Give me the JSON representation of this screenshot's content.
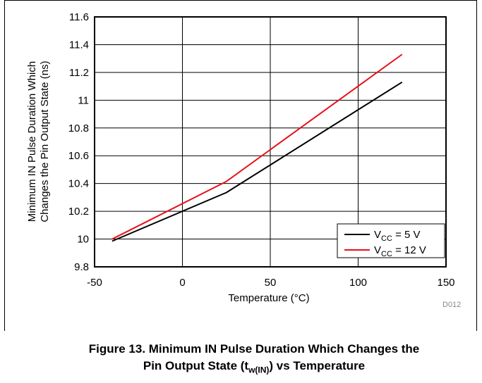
{
  "chart_data": {
    "type": "line",
    "x_label_prefix": "Temperature (",
    "x_label_unit": "°C",
    "x_label_suffix": ")",
    "y_label_line1": "Minimum IN Pulse Duration Which",
    "y_label_line2": "Changes the Pin Output State (ns)",
    "xlim": [
      -50,
      150
    ],
    "ylim": [
      9.8,
      11.6
    ],
    "x_ticks": [
      -50,
      0,
      50,
      100,
      150
    ],
    "x_tick_labels": [
      "-50",
      "0",
      "50",
      "100",
      "150"
    ],
    "y_ticks": [
      9.8,
      10,
      10.2,
      10.4,
      10.6,
      10.8,
      11,
      11.2,
      11.4,
      11.6
    ],
    "y_tick_labels": [
      "9.8",
      "10",
      "10.2",
      "10.4",
      "10.6",
      "10.8",
      "11",
      "11.2",
      "11.4",
      "11.6"
    ],
    "grid": true,
    "legend_position": "bottom-right",
    "series": [
      {
        "name_main": "V",
        "name_sub": "CC",
        "name_rest": " = 5 V",
        "color": "#000000",
        "x": [
          -40,
          25,
          125
        ],
        "y": [
          9.985,
          10.335,
          11.13
        ]
      },
      {
        "name_main": "V",
        "name_sub": "CC",
        "name_rest": " = 12 V",
        "color": "#e8101a",
        "x": [
          -40,
          25,
          125
        ],
        "y": [
          10.0,
          10.415,
          11.33
        ]
      }
    ],
    "figure_code": "D012"
  },
  "caption": {
    "line1": "Figure 13. Minimum IN Pulse Duration Which Changes the",
    "line2_prefix": "Pin Output State (t",
    "line2_sub": "w(IN)",
    "line2_suffix": ") vs Temperature"
  }
}
